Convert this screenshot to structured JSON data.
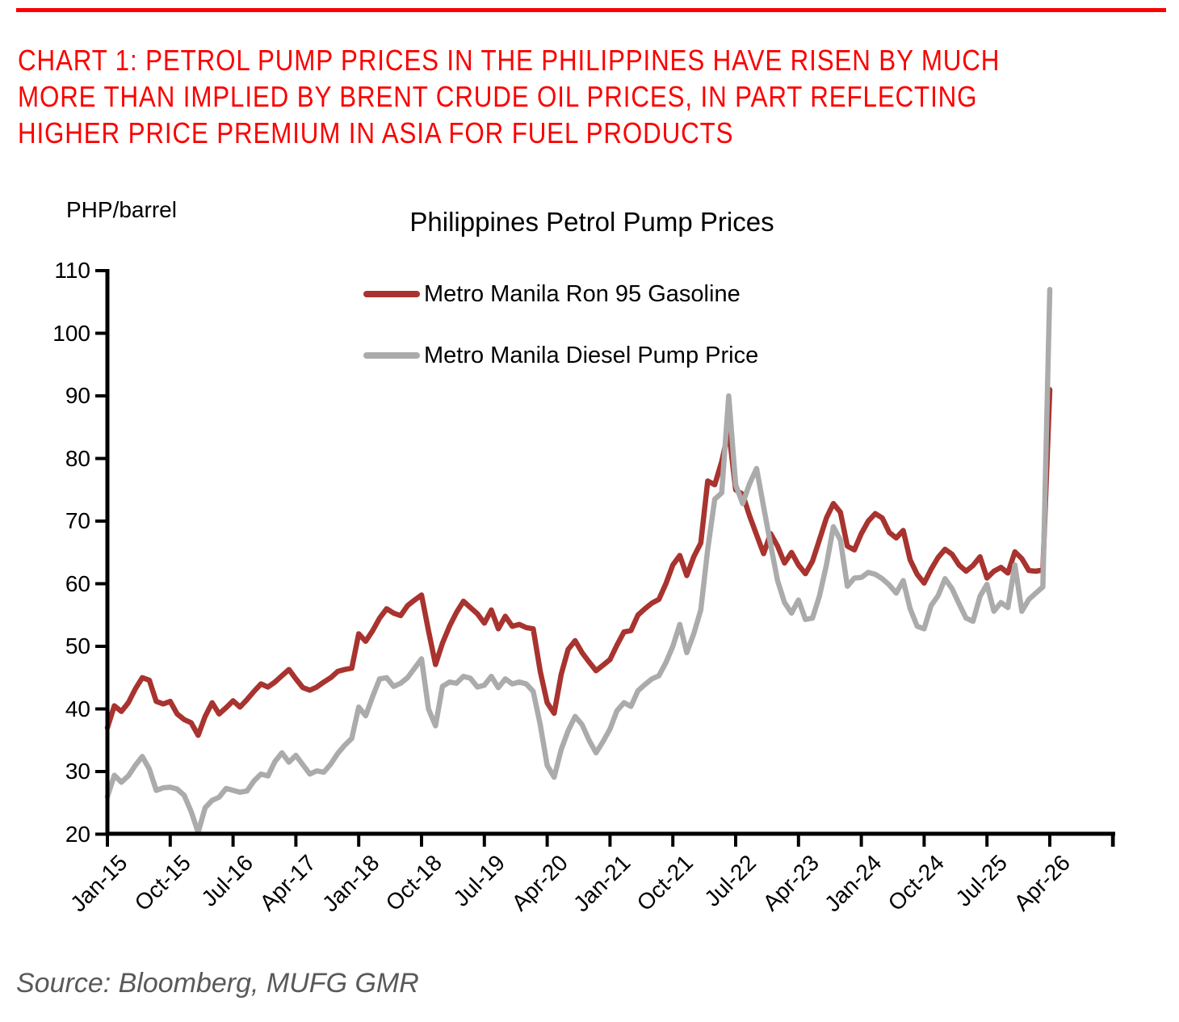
{
  "header": {
    "title_lines": [
      "CHART 1: PETROL PUMP PRICES IN THE PHILIPPINES HAVE RISEN BY MUCH",
      "MORE THAN IMPLIED BY BRENT CRUDE OIL PRICES, IN PART REFLECTING",
      "HIGHER PRICE PREMIUM IN ASIA FOR FUEL PRODUCTS"
    ]
  },
  "colors": {
    "heading_red": "#fa0000",
    "top_rule_red": "#fa0000",
    "gasoline_line": "#a8332f",
    "diesel_line": "#ababab",
    "axis_black": "#000000",
    "source_gray": "#595959"
  },
  "source": "Source: Bloomberg, MUFG GMR",
  "chart_data": {
    "type": "line",
    "title": "Philippines Petrol Pump Prices",
    "ylabel": "PHP/barrel",
    "xlabel": "",
    "ylim": [
      20,
      110
    ],
    "y_ticks": [
      20,
      30,
      40,
      50,
      60,
      70,
      80,
      90,
      100,
      110
    ],
    "grid": false,
    "legend_position": "top-center-inside",
    "x_start": "Jan-2015",
    "x_end": "Apr-2026",
    "frequency": "monthly",
    "x_tick_interval_months": 9,
    "x_tick_labels": [
      "Jan-15",
      "Oct-15",
      "Jul-16",
      "Apr-17",
      "Jan-18",
      "Oct-18",
      "Jul-19",
      "Apr-20",
      "Jan-21",
      "Oct-21",
      "Jul-22",
      "Apr-23",
      "Jan-24",
      "Oct-24",
      "Jul-25",
      "Apr-26"
    ],
    "series": [
      {
        "name": "Metro Manila Ron 95 Gasoline",
        "color": "#a8332f",
        "values": [
          37.0,
          40.5,
          39.6,
          41.0,
          43.2,
          45.0,
          44.6,
          41.2,
          40.8,
          41.2,
          39.2,
          38.3,
          37.8,
          35.8,
          38.8,
          41.0,
          39.2,
          40.2,
          41.3,
          40.3,
          41.5,
          42.8,
          44.0,
          43.5,
          44.3,
          45.3,
          46.3,
          44.8,
          43.4,
          43.0,
          43.5,
          44.3,
          45.0,
          46.0,
          46.3,
          46.5,
          52.0,
          50.8,
          52.5,
          54.5,
          56.0,
          55.3,
          54.9,
          56.5,
          57.4,
          58.2,
          52.5,
          47.1,
          50.5,
          53.2,
          55.4,
          57.2,
          56.2,
          55.2,
          53.7,
          55.8,
          52.8,
          54.8,
          53.2,
          53.5,
          53.0,
          52.8,
          46.0,
          41.0,
          39.3,
          45.5,
          49.5,
          50.9,
          49.0,
          47.5,
          46.1,
          47.0,
          47.9,
          50.2,
          52.3,
          52.5,
          55.0,
          56.0,
          56.9,
          57.5,
          60.0,
          63.0,
          64.5,
          61.3,
          64.3,
          66.5,
          76.4,
          75.8,
          79.5,
          84.5,
          75.0,
          74.3,
          70.8,
          67.8,
          64.8,
          68.0,
          66.0,
          63.3,
          65.0,
          63.0,
          61.6,
          63.6,
          67.0,
          70.5,
          72.8,
          71.4,
          66.0,
          65.4,
          68.0,
          70.0,
          71.2,
          70.5,
          68.2,
          67.3,
          68.5,
          63.8,
          61.5,
          60.1,
          62.3,
          64.2,
          65.5,
          64.7,
          63.0,
          62.0,
          62.9,
          64.3,
          60.9,
          62.0,
          62.6,
          61.7,
          65.1,
          64.0,
          62.1,
          62.0,
          62.2,
          91.0
        ]
      },
      {
        "name": "Metro Manila Diesel Pump Price",
        "color": "#ababab",
        "values": [
          26.0,
          29.4,
          28.3,
          29.3,
          31.0,
          32.4,
          30.4,
          27.0,
          27.4,
          27.5,
          27.2,
          26.2,
          23.6,
          20.3,
          24.2,
          25.4,
          25.9,
          27.3,
          27.0,
          26.7,
          26.9,
          28.5,
          29.6,
          29.3,
          31.6,
          33.0,
          31.5,
          32.6,
          31.1,
          29.6,
          30.1,
          29.9,
          31.2,
          32.9,
          34.2,
          35.3,
          40.3,
          38.9,
          42.0,
          44.8,
          45.0,
          43.6,
          44.1,
          45.0,
          46.5,
          48.0,
          40.0,
          37.3,
          43.6,
          44.3,
          44.1,
          45.2,
          44.9,
          43.5,
          43.8,
          45.2,
          43.4,
          44.8,
          44.0,
          44.3,
          44.0,
          42.8,
          37.5,
          31.0,
          29.1,
          33.5,
          36.5,
          38.8,
          37.5,
          35.0,
          33.0,
          34.8,
          36.8,
          39.7,
          41.0,
          40.4,
          42.9,
          43.9,
          44.8,
          45.3,
          47.4,
          50.0,
          53.5,
          49.0,
          52.0,
          55.8,
          65.5,
          73.5,
          74.5,
          90.0,
          75.8,
          72.8,
          76.0,
          78.4,
          72.3,
          66.3,
          60.5,
          57.0,
          55.3,
          57.4,
          54.3,
          54.5,
          58.0,
          63.0,
          69.1,
          67.0,
          59.6,
          60.9,
          61.0,
          61.8,
          61.5,
          60.8,
          59.8,
          58.5,
          60.5,
          56.0,
          53.2,
          52.8,
          56.5,
          58.1,
          60.8,
          59.2,
          56.8,
          54.5,
          54.0,
          58.0,
          59.9,
          55.6,
          57.0,
          56.2,
          63.0,
          55.6,
          57.5,
          58.5,
          59.5,
          107.0
        ]
      }
    ]
  }
}
